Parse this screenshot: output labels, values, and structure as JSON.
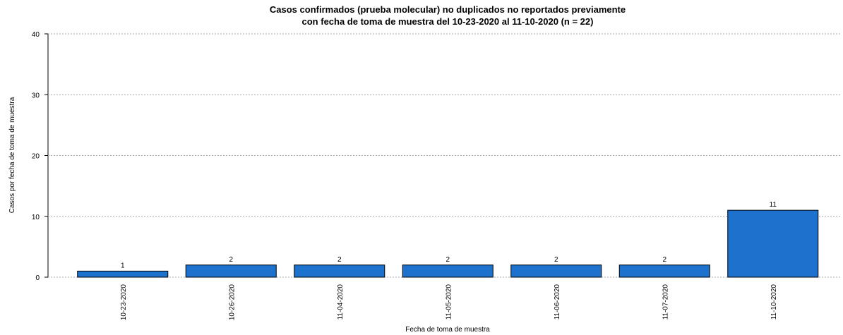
{
  "chart_data": {
    "type": "bar",
    "title": [
      "Casos confirmados (prueba molecular) no duplicados no reportados previamente",
      "con fecha de toma de muestra del 10-23-2020 al 11-10-2020 (n = 22)"
    ],
    "x_label": "Fecha de toma de muestra",
    "y_label": "Casos por fecha de toma de muestra",
    "categories": [
      "10-23-2020",
      "10-26-2020",
      "11-04-2020",
      "11-05-2020",
      "11-06-2020",
      "11-07-2020",
      "11-10-2020"
    ],
    "values": [
      1,
      2,
      2,
      2,
      2,
      2,
      11
    ],
    "color": "#1c72cc",
    "ylim": [
      0,
      40
    ],
    "yticks": [
      0,
      10,
      20,
      30,
      40
    ],
    "grid": true
  }
}
